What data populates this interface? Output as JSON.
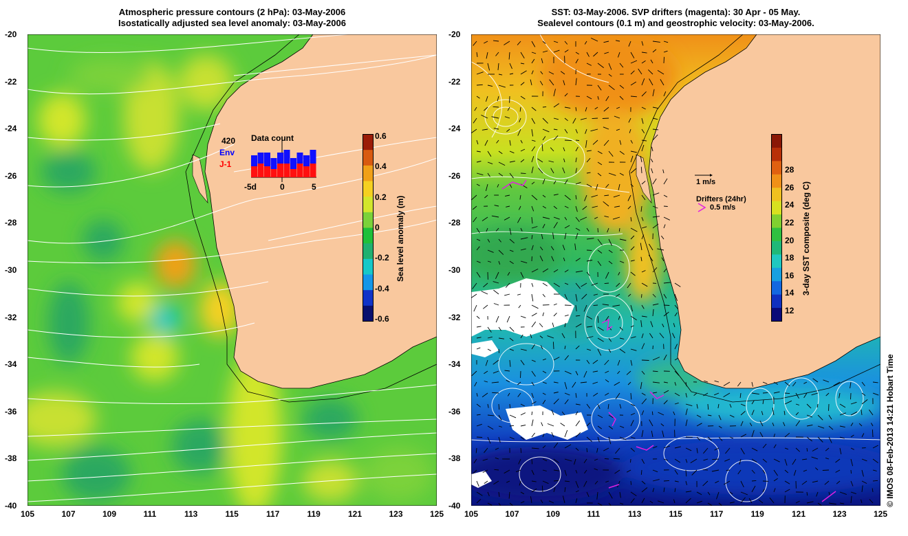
{
  "left_panel": {
    "title_line1": "Atmospheric pressure contours (2 hPa): 03-May-2006",
    "title_line2": "Isostatically adjusted sea level anomaly: 03-May-2006",
    "colorbar": {
      "label": "Sea level anomaly (m)",
      "ticks": [
        "0.6",
        "0.4",
        "0.2",
        "0",
        "-0.2",
        "-0.4",
        "-0.6"
      ],
      "colors": [
        "#08106e",
        "#1033c8",
        "#1496e8",
        "#16c8c8",
        "#20b070",
        "#1fc03a",
        "#7bd23a",
        "#d2e62c",
        "#f5d020",
        "#f0a018",
        "#d85a10",
        "#9b1c08"
      ]
    },
    "data_count": {
      "title": "Data count",
      "total": "420",
      "env_label": "Env",
      "j1_label": "J-1",
      "xticks": [
        "-5d",
        "0",
        "5"
      ],
      "env_values": [
        8,
        9,
        9,
        7,
        9,
        10,
        7,
        9,
        8,
        10
      ],
      "j1_values": [
        4,
        5,
        4,
        3,
        5,
        5,
        3,
        5,
        4,
        5
      ]
    }
  },
  "right_panel": {
    "title_line1": "SST: 03-May-2006. SVP drifters (magenta): 30 Apr - 05 May.",
    "title_line2": "Sealevel contours (0.1 m) and geostrophic velocity: 03-May-2006.",
    "colorbar": {
      "label": "3-day SST composite (deg C)",
      "ticks": [
        "28",
        "26",
        "24",
        "22",
        "20",
        "18",
        "16",
        "14",
        "12"
      ],
      "colors": [
        "#0a0a78",
        "#1030c0",
        "#1468e0",
        "#18a0e0",
        "#20c8c0",
        "#20b878",
        "#30c040",
        "#80d030",
        "#d8e020",
        "#f0c020",
        "#f09018",
        "#e06010",
        "#b83008",
        "#8a1806"
      ]
    },
    "velocity_key": "1 m/s",
    "drifters_label": "Drifters (24hr)",
    "drifters_speed": "0.5 m/s"
  },
  "axes": {
    "x_ticks": [
      "105",
      "107",
      "109",
      "111",
      "113",
      "115",
      "117",
      "119",
      "121",
      "123",
      "125"
    ],
    "y_ticks": [
      "-20",
      "-22",
      "-24",
      "-26",
      "-28",
      "-30",
      "-32",
      "-34",
      "-36",
      "-38",
      "-40"
    ],
    "lon_range": [
      105,
      125
    ],
    "lat_range": [
      -40,
      -20
    ]
  },
  "credit": "© IMOS 08-Feb-2013 14:21 Hobart Time",
  "colors": {
    "land": "#f9c89e",
    "ocean_left": "#5ccb3c",
    "ocean_left_high": "#c8e030",
    "ocean_left_low": "#2aa860",
    "sst_warm": "#f0a418",
    "sst_mid": "#40c040",
    "sst_cool": "#1a8fd8",
    "sst_cold": "#102a9c",
    "drifter": "#e020e0",
    "contour": "#ffffff"
  }
}
